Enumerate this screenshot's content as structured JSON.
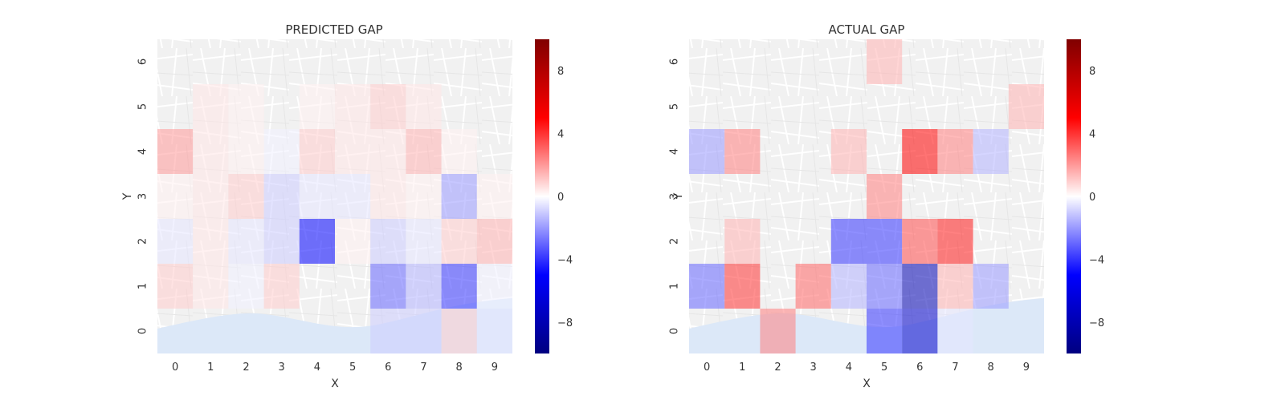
{
  "chart_data": [
    {
      "type": "heatmap",
      "title": "PREDICTED GAP",
      "xlabel": "X",
      "ylabel": "Y",
      "x_ticks": [
        "0",
        "1",
        "2",
        "3",
        "4",
        "5",
        "6",
        "7",
        "8",
        "9"
      ],
      "y_ticks": [
        "0",
        "1",
        "2",
        "3",
        "4",
        "5",
        "6"
      ],
      "colorbar": {
        "range": [
          -10,
          10
        ],
        "ticks": [
          "8",
          "4",
          "0",
          "−4",
          "−8"
        ],
        "tick_values": [
          8,
          4,
          0,
          -4,
          -8
        ],
        "cmap": "seismic"
      },
      "values": [
        [
          0,
          0,
          0,
          0,
          0,
          0,
          -1,
          -1,
          1,
          -0.5
        ],
        [
          1,
          0.5,
          -0.3,
          1,
          0,
          0,
          -3,
          -1.5,
          -4,
          -0.3
        ],
        [
          -0.5,
          0.5,
          -0.5,
          -1,
          -5,
          0.3,
          -1,
          -0.5,
          1,
          1.5
        ],
        [
          0.3,
          0.5,
          1,
          -1,
          -0.5,
          -0.5,
          0.5,
          0.3,
          -2,
          0.3
        ],
        [
          2,
          0.5,
          0.3,
          -0.3,
          1,
          0.5,
          0.5,
          1.5,
          0.3,
          0
        ],
        [
          0,
          0.5,
          0.3,
          0,
          0.3,
          0.5,
          1,
          0.5,
          0,
          0
        ],
        [
          0,
          0,
          0,
          0,
          0,
          0,
          0,
          0,
          0,
          0
        ]
      ]
    },
    {
      "type": "heatmap",
      "title": "ACTUAL GAP",
      "xlabel": "X",
      "ylabel": "Y",
      "x_ticks": [
        "0",
        "1",
        "2",
        "3",
        "4",
        "5",
        "6",
        "7",
        "8",
        "9"
      ],
      "y_ticks": [
        "0",
        "1",
        "2",
        "3",
        "4",
        "5",
        "6"
      ],
      "colorbar": {
        "range": [
          -10,
          10
        ],
        "ticks": [
          "8",
          "4",
          "0",
          "−4",
          "−8"
        ],
        "tick_values": [
          8,
          4,
          0,
          -4,
          -8
        ],
        "cmap": "seismic"
      },
      "values": [
        [
          0,
          0,
          2.5,
          0,
          0,
          -4,
          -7,
          -0.5,
          0,
          0
        ],
        [
          -3,
          4,
          0,
          3,
          -1.5,
          -3,
          -8,
          1.5,
          -2,
          0
        ],
        [
          0,
          1.5,
          0,
          0,
          -4,
          -4,
          3.5,
          4.5,
          0,
          0
        ],
        [
          0,
          0,
          0,
          0,
          0,
          2.5,
          0,
          0,
          0,
          0
        ],
        [
          -2,
          2.5,
          0,
          0,
          1.5,
          0,
          5,
          2.5,
          -1.5,
          0
        ],
        [
          0,
          0,
          0,
          0,
          0,
          0,
          0,
          0,
          0,
          1.5
        ],
        [
          0,
          0,
          0,
          0,
          0,
          1.5,
          0,
          0,
          0,
          0
        ]
      ]
    }
  ]
}
